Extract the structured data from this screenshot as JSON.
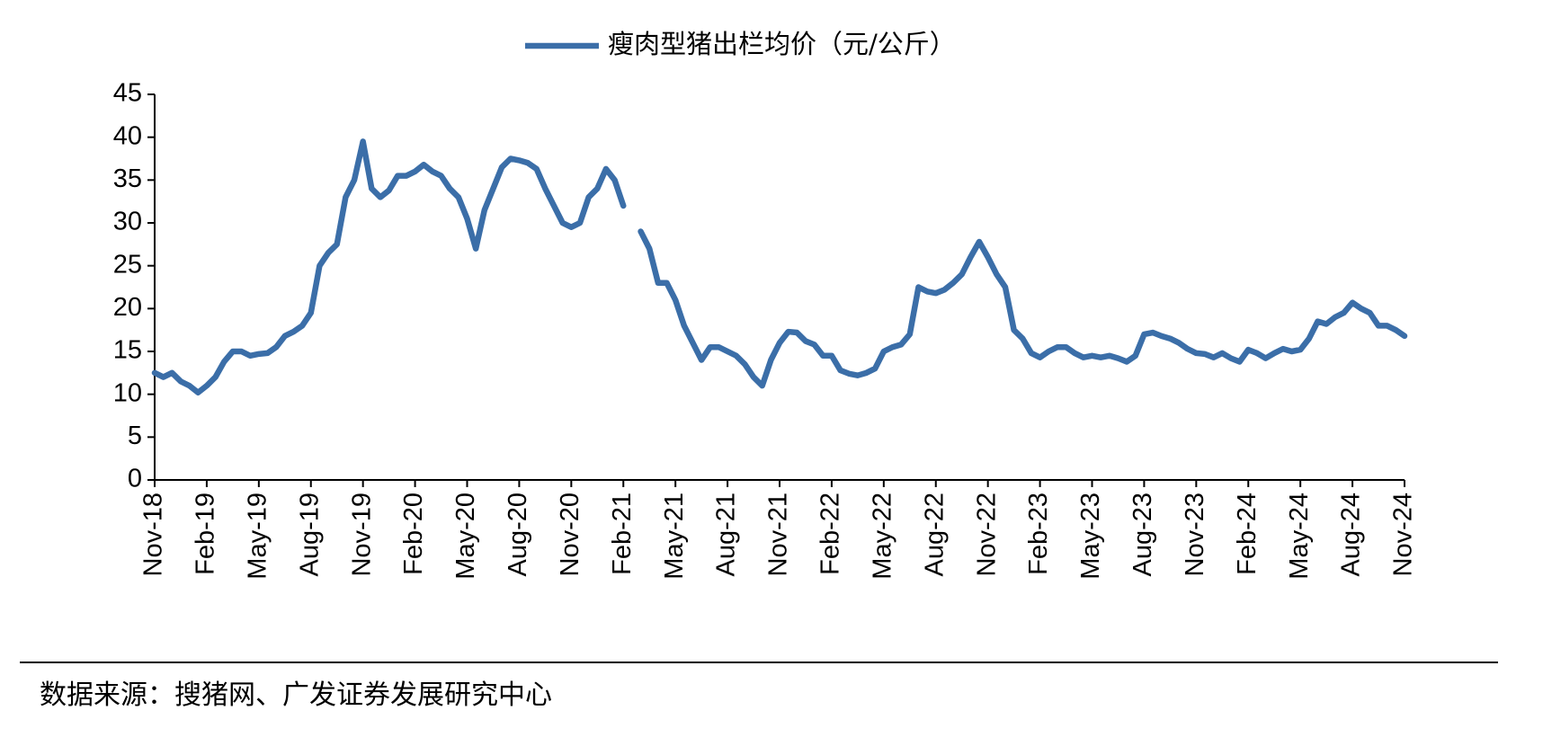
{
  "chart_data": {
    "type": "line",
    "categories": [
      "Nov-18",
      null,
      null,
      null,
      null,
      null,
      "Feb-19",
      null,
      null,
      null,
      null,
      null,
      "May-19",
      null,
      null,
      null,
      null,
      null,
      "Aug-19",
      null,
      null,
      null,
      null,
      null,
      "Nov-19",
      null,
      null,
      null,
      null,
      null,
      "Feb-20",
      null,
      null,
      null,
      null,
      null,
      "May-20",
      null,
      null,
      null,
      null,
      null,
      "Aug-20",
      null,
      null,
      null,
      null,
      null,
      "Nov-20",
      null,
      null,
      null,
      null,
      null,
      "Feb-21",
      null,
      null,
      null,
      null,
      null,
      "May-21",
      null,
      null,
      null,
      null,
      null,
      "Aug-21",
      null,
      null,
      null,
      null,
      null,
      "Nov-21",
      null,
      null,
      null,
      null,
      null,
      "Feb-22",
      null,
      null,
      null,
      null,
      null,
      "May-22",
      null,
      null,
      null,
      null,
      null,
      "Aug-22",
      null,
      null,
      null,
      null,
      null,
      "Nov-22",
      null,
      null,
      null,
      null,
      null,
      "Feb-23",
      null,
      null,
      null,
      null,
      null,
      "May-23",
      null,
      null,
      null,
      null,
      null,
      "Aug-23",
      null,
      null,
      null,
      null,
      null,
      "Nov-23",
      null,
      null,
      null,
      null,
      null,
      "Feb-24",
      null,
      null,
      null,
      null,
      null,
      "May-24",
      null,
      null,
      null,
      null,
      null,
      "Aug-24",
      null,
      null,
      null,
      null,
      null,
      "Nov-24"
    ],
    "series": [
      {
        "name": "瘦肉型猪出栏均价（元/公斤）",
        "color": "#3b6ea8",
        "values": [
          12.5,
          12,
          12.5,
          11.5,
          11,
          10.2,
          11,
          12,
          13.8,
          15,
          15,
          14.5,
          14.7,
          14.8,
          15.5,
          16.8,
          17.3,
          18,
          19.5,
          25,
          26.5,
          27.5,
          33,
          35,
          39.5,
          34,
          33,
          33.8,
          35.5,
          35.5,
          36,
          36.8,
          36,
          35.5,
          34,
          33,
          30.5,
          27,
          31.5,
          34,
          36.5,
          37.5,
          37.3,
          37,
          36.3,
          34,
          32,
          30,
          29.5,
          30,
          33,
          34,
          36.3,
          35,
          32,
          null,
          29,
          27,
          23,
          23,
          21,
          18,
          16,
          14,
          15.5,
          15.5,
          15,
          14.5,
          13.5,
          12,
          11,
          14,
          16,
          17.3,
          17.2,
          16.2,
          15.8,
          14.5,
          14.5,
          12.8,
          12.4,
          12.2,
          12.5,
          13,
          15,
          15.5,
          15.8,
          17,
          22.5,
          22,
          21.8,
          22.2,
          23,
          24,
          26,
          27.8,
          26,
          24,
          22.5,
          17.5,
          16.5,
          14.8,
          14.3,
          15,
          15.5,
          15.5,
          14.8,
          14.3,
          14.5,
          14.3,
          14.5,
          14.2,
          13.8,
          14.5,
          17,
          17.2,
          16.8,
          16.5,
          16,
          15.3,
          14.8,
          14.7,
          14.3,
          14.8,
          14.2,
          13.8,
          15.2,
          14.8,
          14.2,
          14.8,
          15.3,
          15,
          15.2,
          16.5,
          18.5,
          18.2,
          19,
          19.5,
          20.7,
          20,
          19.5,
          18,
          18,
          17.5,
          16.8
        ]
      }
    ],
    "ylim": [
      0,
      45
    ],
    "yticks": [
      0,
      5,
      10,
      15,
      20,
      25,
      30,
      35,
      40,
      45
    ],
    "grid": false,
    "legend": "top",
    "source": "数据来源：搜猪网、广发证券发展研究中心"
  }
}
